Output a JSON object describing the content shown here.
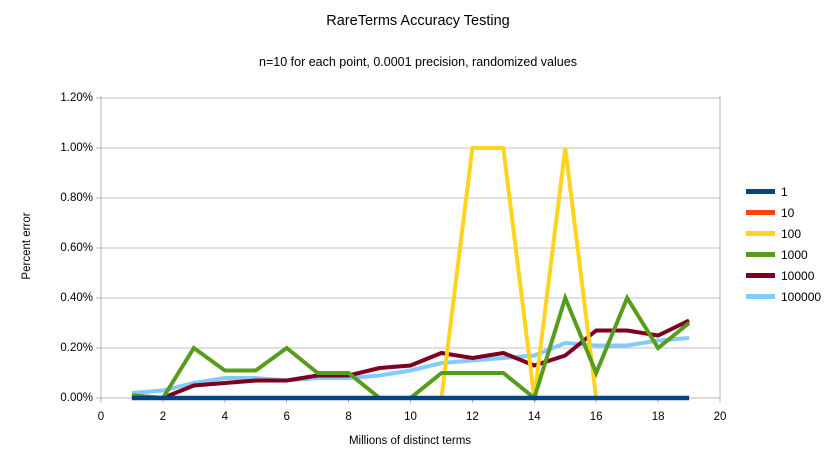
{
  "chart_data": {
    "type": "line",
    "title": "RareTerms Accuracy Testing",
    "subtitle": "n=10 for each point, 0.0001 precision, randomized values",
    "xlabel": "Millions of distinct terms",
    "ylabel": "Percent error",
    "xlim": [
      0,
      20
    ],
    "ylim_percent": [
      0,
      1.2
    ],
    "x_ticks": [
      0,
      2,
      4,
      6,
      8,
      10,
      12,
      14,
      16,
      18,
      20
    ],
    "y_ticks_percent": [
      0.0,
      0.2,
      0.4,
      0.6,
      0.8,
      1.0,
      1.2
    ],
    "y_tick_labels": [
      "0.00%",
      "0.20%",
      "0.40%",
      "0.60%",
      "0.80%",
      "1.00%",
      "1.20%"
    ],
    "grid": true,
    "legend_position": "right",
    "x": [
      1,
      2,
      3,
      4,
      5,
      6,
      7,
      8,
      9,
      10,
      11,
      12,
      13,
      14,
      15,
      16,
      17,
      18,
      19
    ],
    "series": [
      {
        "name": "1",
        "color": "#004586",
        "values": [
          0,
          0,
          0,
          0,
          0,
          0,
          0,
          0,
          0,
          0,
          0,
          0,
          0,
          0,
          0,
          0,
          0,
          0,
          0
        ]
      },
      {
        "name": "10",
        "color": "#FF420E",
        "values": [
          0,
          0,
          0,
          0,
          0,
          0,
          0,
          0,
          0,
          0,
          0,
          0,
          0,
          0,
          0,
          0,
          0,
          0,
          0
        ]
      },
      {
        "name": "100",
        "color": "#FFD320",
        "values": [
          0,
          0,
          0,
          0,
          0,
          0,
          0,
          0,
          0,
          0,
          0,
          1.0,
          1.0,
          0,
          1.0,
          0,
          0,
          0,
          0
        ]
      },
      {
        "name": "1000",
        "color": "#579D1C",
        "values": [
          0.01,
          0,
          0.2,
          0.11,
          0.11,
          0.2,
          0.1,
          0.1,
          0,
          0,
          0.1,
          0.1,
          0.1,
          0,
          0.4,
          0.1,
          0.4,
          0.2,
          0.3
        ]
      },
      {
        "name": "10000",
        "color": "#7E0021",
        "values": [
          0.01,
          0,
          0.05,
          0.06,
          0.07,
          0.07,
          0.09,
          0.09,
          0.12,
          0.13,
          0.18,
          0.16,
          0.18,
          0.13,
          0.17,
          0.27,
          0.27,
          0.25,
          0.31
        ]
      },
      {
        "name": "100000",
        "color": "#83CAFF",
        "values": [
          0.02,
          0.03,
          0.06,
          0.08,
          0.08,
          0.07,
          0.08,
          0.08,
          0.09,
          0.11,
          0.14,
          0.15,
          0.16,
          0.17,
          0.22,
          0.21,
          0.21,
          0.23,
          0.24
        ]
      }
    ],
    "axis_color": "#b5b5b5",
    "grid_color": "#c2c2c2"
  }
}
